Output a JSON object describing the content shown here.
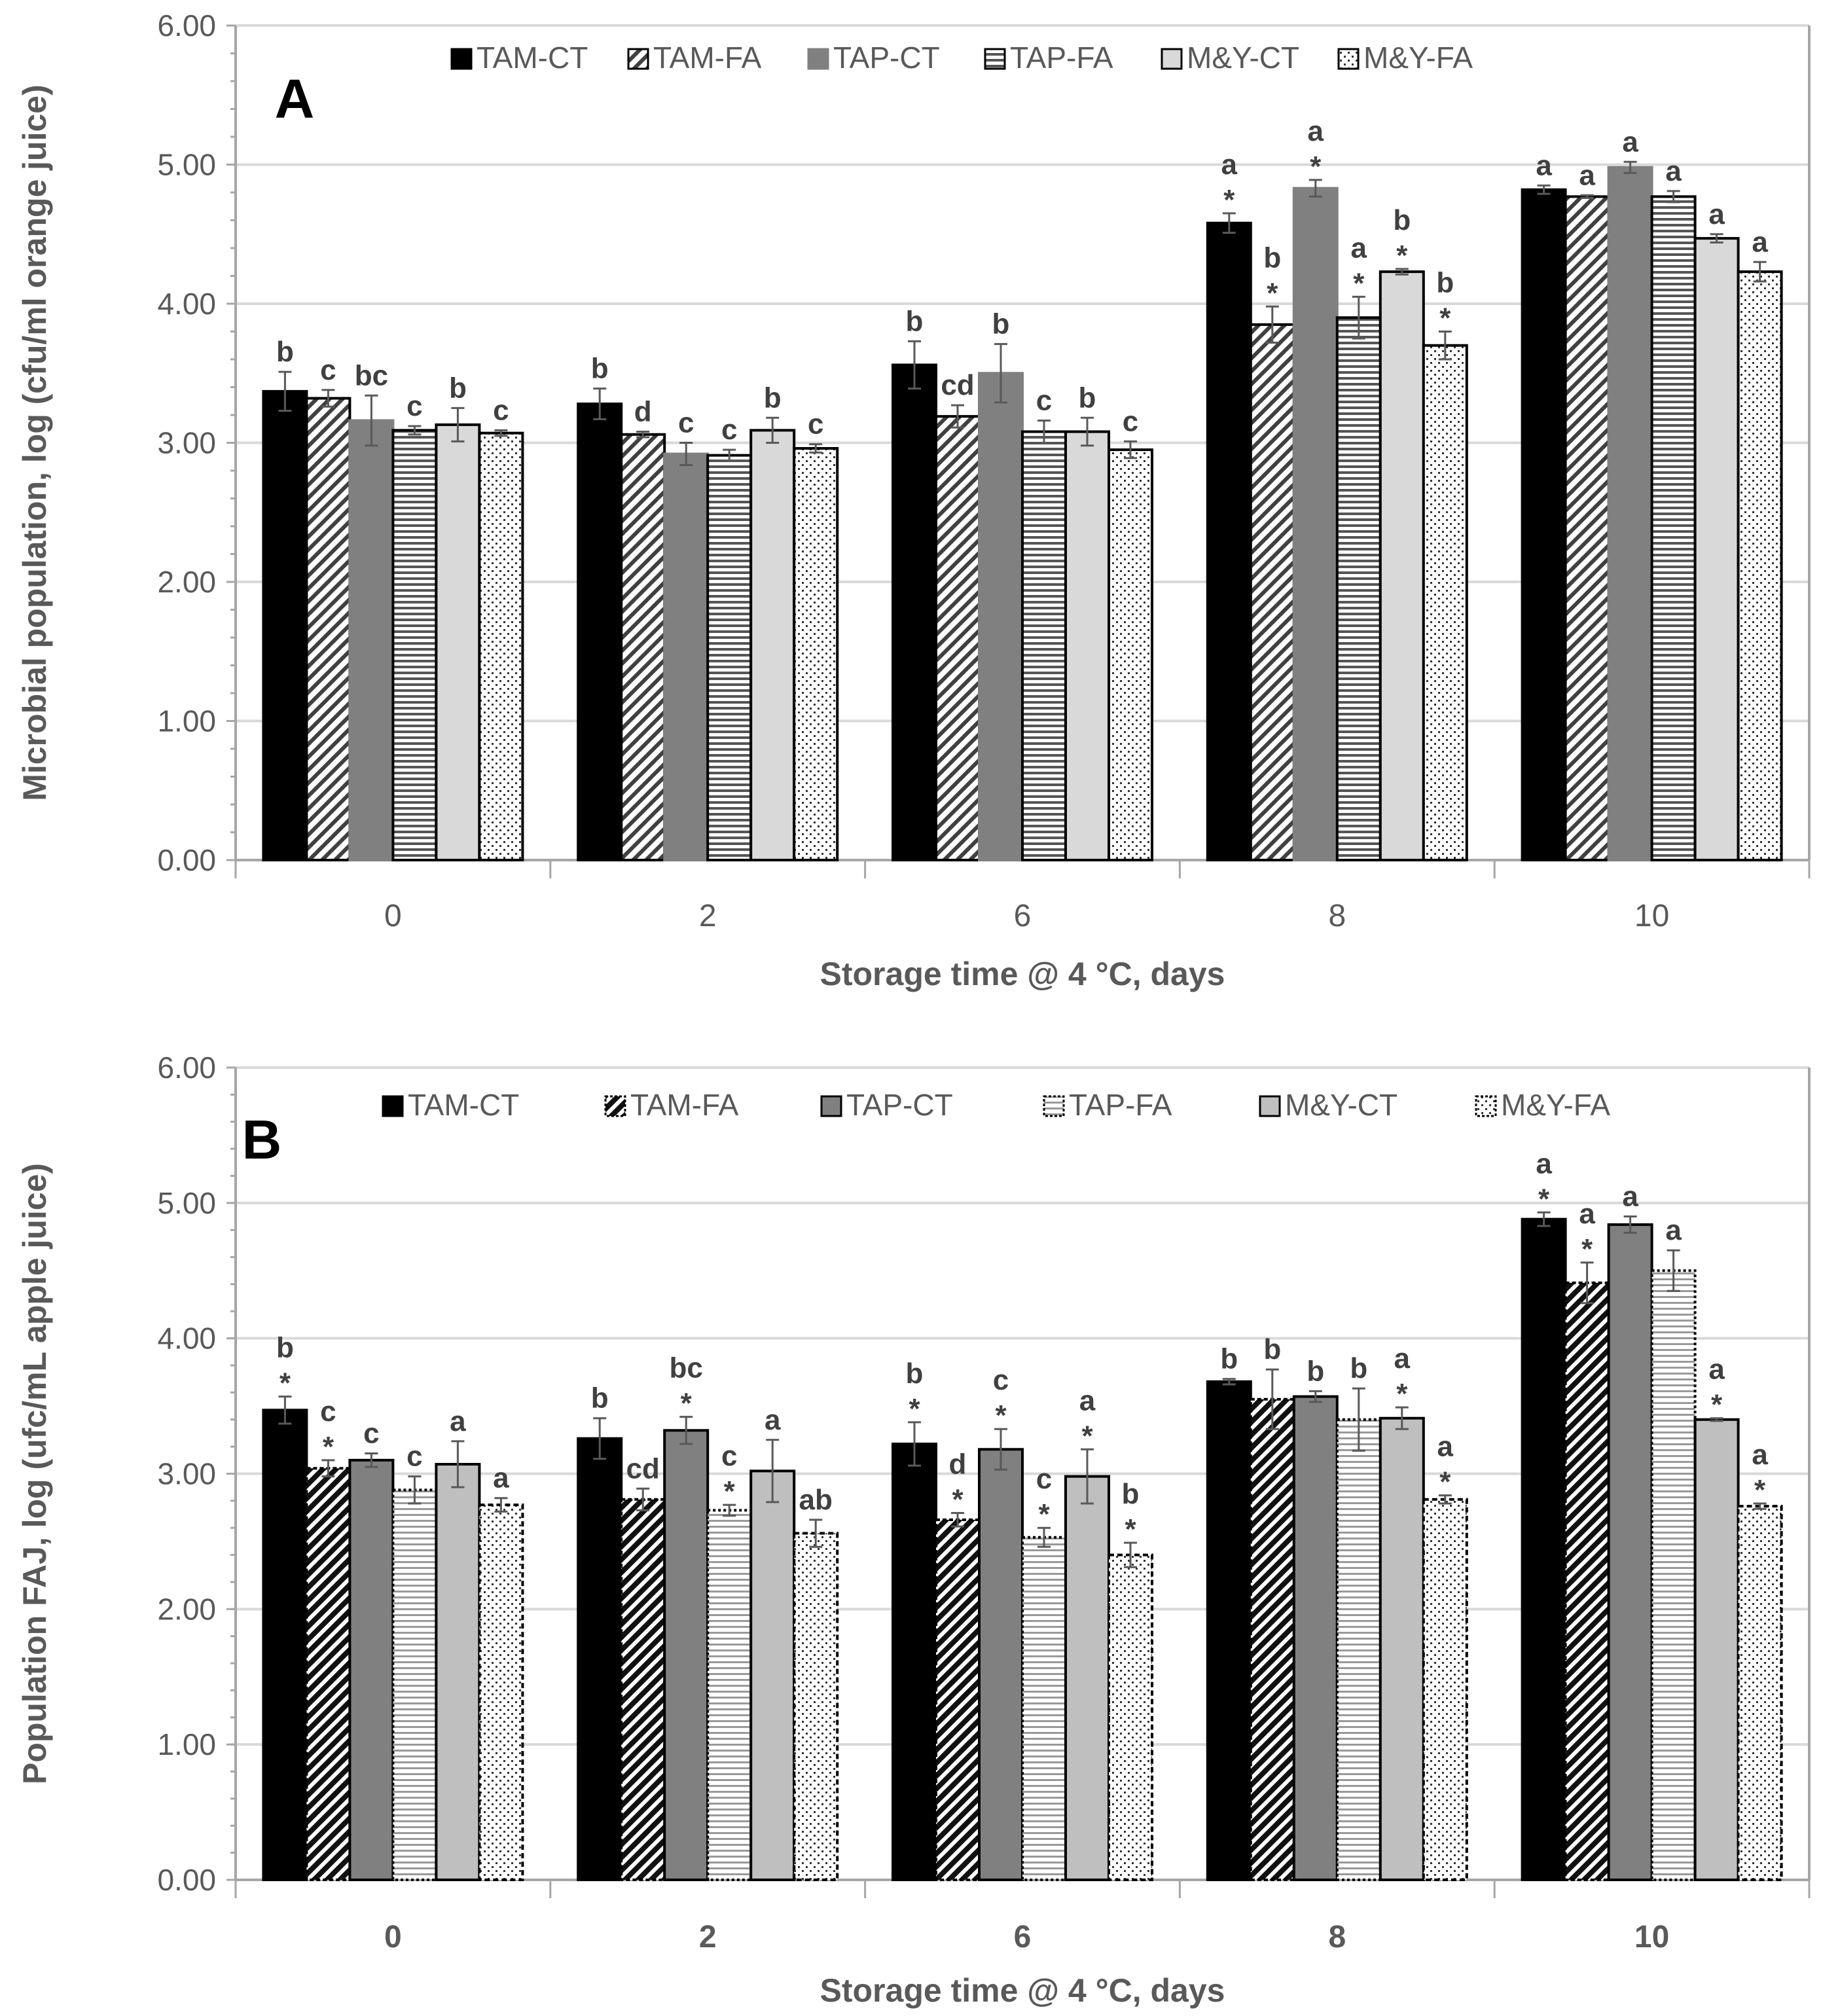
{
  "chart_data": [
    {
      "type": "bar",
      "panel": "A",
      "xlabel": "Storage time @ 4 °C, days",
      "ylabel": "Microbial population, log (cfu/ml orange juice)",
      "ylim": [
        0,
        6
      ],
      "yticks": [
        "0.00",
        "1.00",
        "2.00",
        "3.00",
        "4.00",
        "5.00",
        "6.00"
      ],
      "grid": true,
      "legend_position": "top",
      "categories": [
        "0",
        "2",
        "6",
        "8",
        "10"
      ],
      "series": [
        {
          "name": "TAM-CT",
          "values": [
            3.37,
            3.28,
            3.56,
            4.58,
            4.82
          ],
          "errors": [
            0.14,
            0.11,
            0.17,
            0.07,
            0.03
          ],
          "labels": [
            "b",
            "b",
            "b",
            "a\n*",
            "a"
          ]
        },
        {
          "name": "TAM-FA",
          "values": [
            3.32,
            3.06,
            3.19,
            3.85,
            4.77
          ],
          "errors": [
            0.06,
            0.02,
            0.08,
            0.13,
            0.01
          ],
          "labels": [
            "c",
            "d",
            "cd",
            "b\n*",
            "a"
          ]
        },
        {
          "name": "TAP-CT",
          "values": [
            3.16,
            2.92,
            3.5,
            4.83,
            4.98
          ],
          "errors": [
            0.18,
            0.08,
            0.21,
            0.06,
            0.04
          ],
          "labels": [
            "bc",
            "c",
            "b",
            "a\n*",
            "a"
          ]
        },
        {
          "name": "TAP-FA",
          "values": [
            3.09,
            2.91,
            3.08,
            3.9,
            4.77
          ],
          "errors": [
            0.03,
            0.04,
            0.08,
            0.15,
            0.04
          ],
          "labels": [
            "c",
            "c",
            "c",
            "a\n*",
            "a"
          ]
        },
        {
          "name": "M&Y-CT",
          "values": [
            3.13,
            3.09,
            3.08,
            4.23,
            4.47
          ],
          "errors": [
            0.12,
            0.09,
            0.1,
            0.02,
            0.03
          ],
          "labels": [
            "b",
            "b",
            "b",
            "b\n*",
            "a"
          ]
        },
        {
          "name": "M&Y-FA",
          "values": [
            3.07,
            2.96,
            2.95,
            3.7,
            4.23
          ],
          "errors": [
            0.02,
            0.03,
            0.06,
            0.1,
            0.07
          ],
          "labels": [
            "c",
            "c",
            "c",
            "b\n*",
            "a"
          ]
        }
      ]
    },
    {
      "type": "bar",
      "panel": "B",
      "xlabel": "Storage time @ 4 °C, days",
      "ylabel": "Population FAJ, log (ufc/mL apple juice)",
      "ylim": [
        0,
        6
      ],
      "yticks": [
        "0.00",
        "1.00",
        "2.00",
        "3.00",
        "4.00",
        "5.00",
        "6.00"
      ],
      "grid": true,
      "legend_position": "top",
      "categories": [
        "0",
        "2",
        "6",
        "8",
        "10"
      ],
      "series": [
        {
          "name": "TAM-CT",
          "values": [
            3.47,
            3.26,
            3.22,
            3.68,
            4.88
          ],
          "errors": [
            0.1,
            0.15,
            0.16,
            0.02,
            0.05
          ],
          "labels": [
            "b\n*",
            "b",
            "b\n*",
            "b",
            "a\n*"
          ]
        },
        {
          "name": "TAM-FA",
          "values": [
            3.04,
            2.81,
            2.66,
            3.55,
            4.41
          ],
          "errors": [
            0.06,
            0.08,
            0.05,
            0.22,
            0.15
          ],
          "labels": [
            "c\n*",
            "cd",
            "d\n*",
            "b",
            "a\n*"
          ]
        },
        {
          "name": "TAP-CT",
          "values": [
            3.1,
            3.32,
            3.18,
            3.57,
            4.84
          ],
          "errors": [
            0.05,
            0.1,
            0.15,
            0.04,
            0.06
          ],
          "labels": [
            "c",
            "bc\n*",
            "c\n*",
            "b",
            "a"
          ]
        },
        {
          "name": "TAP-FA",
          "values": [
            2.88,
            2.73,
            2.53,
            3.4,
            4.5
          ],
          "errors": [
            0.1,
            0.04,
            0.07,
            0.23,
            0.15
          ],
          "labels": [
            "c",
            "c\n*",
            "c\n*",
            "b",
            "a"
          ]
        },
        {
          "name": "M&Y-CT",
          "values": [
            3.07,
            3.02,
            2.98,
            3.41,
            3.4
          ],
          "errors": [
            0.17,
            0.23,
            0.2,
            0.08,
            0.01
          ],
          "labels": [
            "a",
            "a",
            "a\n*",
            "a\n*",
            "a\n*"
          ]
        },
        {
          "name": "M&Y-FA",
          "values": [
            2.77,
            2.56,
            2.4,
            2.81,
            2.76
          ],
          "errors": [
            0.05,
            0.1,
            0.09,
            0.03,
            0.02
          ],
          "labels": [
            "a",
            "ab",
            "b\n*",
            "a\n*",
            "a\n*"
          ]
        }
      ]
    }
  ]
}
